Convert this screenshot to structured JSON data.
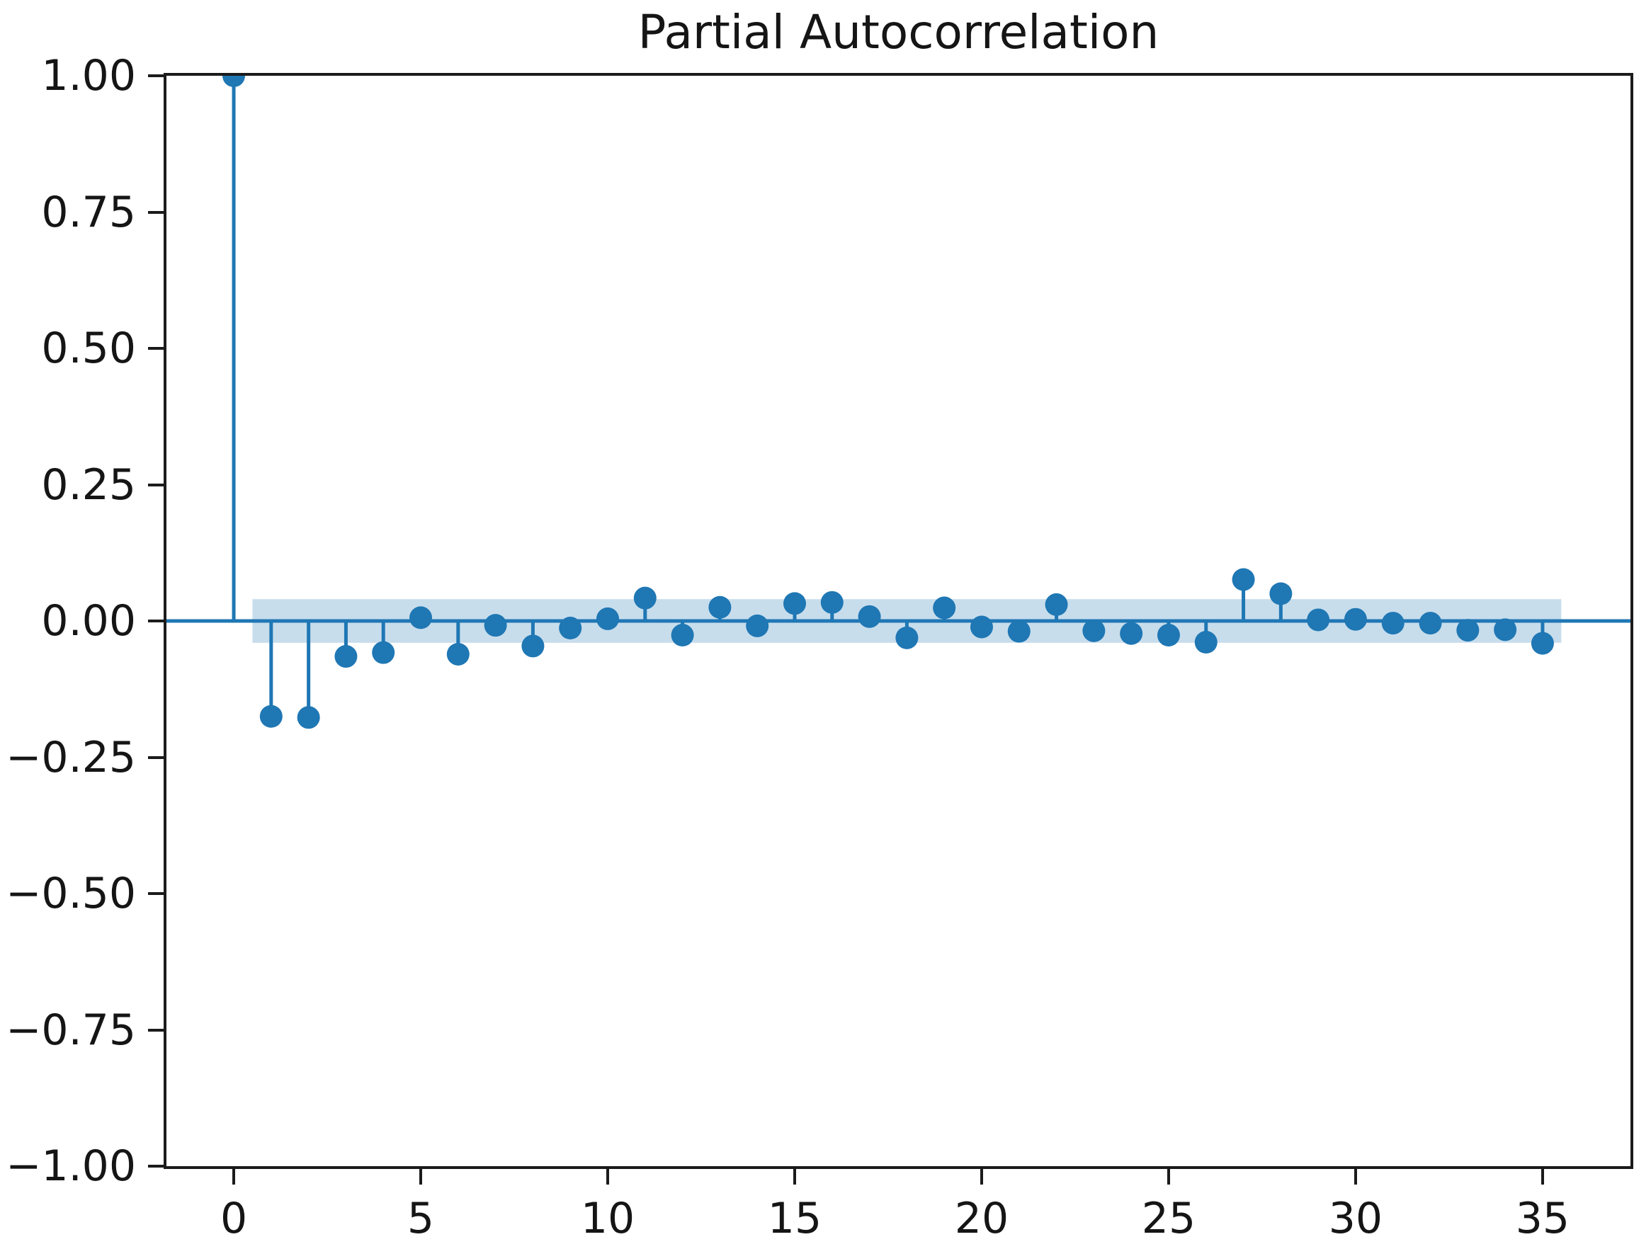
{
  "chart_data": {
    "type": "stem",
    "title": "Partial Autocorrelation",
    "x": [
      0,
      1,
      2,
      3,
      4,
      5,
      6,
      7,
      8,
      9,
      10,
      11,
      12,
      13,
      14,
      15,
      16,
      17,
      18,
      19,
      20,
      21,
      22,
      23,
      24,
      25,
      26,
      27,
      28,
      29,
      30,
      31,
      32,
      33,
      34,
      35
    ],
    "values": [
      1.0,
      -0.175,
      -0.177,
      -0.065,
      -0.058,
      0.006,
      -0.061,
      -0.008,
      -0.046,
      -0.013,
      0.004,
      0.042,
      -0.026,
      0.025,
      -0.009,
      0.032,
      0.034,
      0.008,
      -0.031,
      0.024,
      -0.011,
      -0.019,
      0.03,
      -0.018,
      -0.023,
      -0.026,
      -0.039,
      0.076,
      0.05,
      0.002,
      0.003,
      -0.004,
      -0.004,
      -0.017,
      -0.016,
      -0.041
    ],
    "confidence_band": {
      "lower": -0.04,
      "upper": 0.04,
      "x_start": 0.5,
      "x_end": 35.5
    },
    "xlim": [
      -1.8,
      37.35
    ],
    "ylim": [
      -1.0,
      1.0
    ],
    "x_ticks": [
      {
        "value": 0,
        "label": "0"
      },
      {
        "value": 5,
        "label": "5"
      },
      {
        "value": 10,
        "label": "10"
      },
      {
        "value": 15,
        "label": "15"
      },
      {
        "value": 20,
        "label": "20"
      },
      {
        "value": 25,
        "label": "25"
      },
      {
        "value": 30,
        "label": "30"
      },
      {
        "value": 35,
        "label": "35"
      }
    ],
    "y_ticks": [
      {
        "value": 1.0,
        "label": "1.00"
      },
      {
        "value": 0.75,
        "label": "0.75"
      },
      {
        "value": 0.5,
        "label": "0.50"
      },
      {
        "value": 0.25,
        "label": "0.25"
      },
      {
        "value": 0.0,
        "label": "0.00"
      },
      {
        "value": -0.25,
        "label": "−0.25"
      },
      {
        "value": -0.5,
        "label": "−0.50"
      },
      {
        "value": -0.75,
        "label": "−0.75"
      },
      {
        "value": -1.0,
        "label": "−1.00"
      }
    ],
    "grid": false,
    "legend": null,
    "colors": {
      "stem": "#1f77b4",
      "marker": "#1f77b4",
      "zero_line": "#1f77b4",
      "confidence_band": "rgba(31,119,180,0.25)",
      "spine": "#1b1b1b",
      "text": "#151515",
      "background": "#ffffff"
    }
  }
}
